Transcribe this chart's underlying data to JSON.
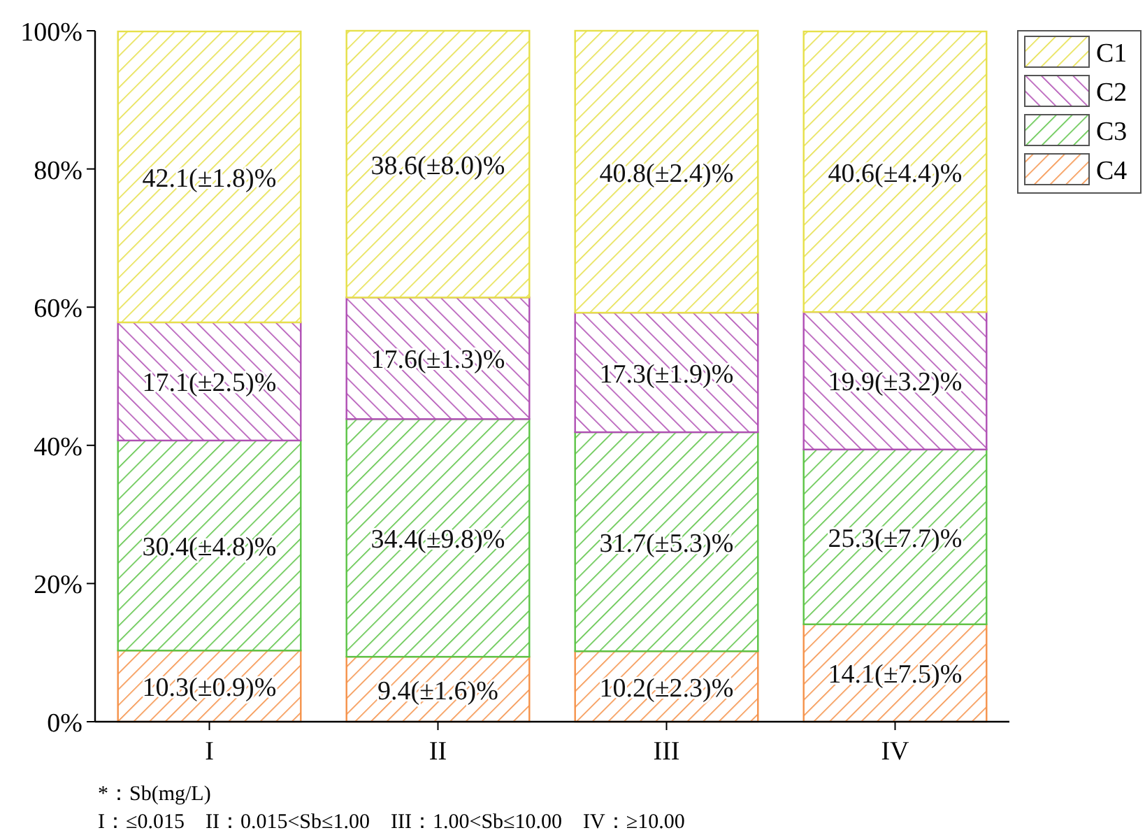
{
  "chart_data": {
    "type": "bar",
    "stacked": true,
    "categories": [
      "I",
      "II",
      "III",
      "IV"
    ],
    "series": [
      {
        "name": "C4",
        "color": "#f5924a",
        "values": [
          10.3,
          9.4,
          10.2,
          14.1
        ],
        "value_labels": [
          "10.3(±0.9)%",
          "9.4(±1.6)%",
          "10.2(±2.3)%",
          "14.1(±7.5)%"
        ]
      },
      {
        "name": "C3",
        "color": "#5cc446",
        "values": [
          30.4,
          34.4,
          31.7,
          25.3
        ],
        "value_labels": [
          "30.4(±4.8)%",
          "34.4(±9.8)%",
          "31.7(±5.3)%",
          "25.3(±7.7)%"
        ]
      },
      {
        "name": "C2",
        "color": "#b04fb4",
        "values": [
          17.1,
          17.6,
          17.3,
          19.9
        ],
        "value_labels": [
          "17.1(±2.5)%",
          "17.6(±1.3)%",
          "17.3(±1.9)%",
          "19.9(±3.2)%"
        ]
      },
      {
        "name": "C1",
        "color": "#e6e04a",
        "values": [
          42.1,
          38.6,
          40.8,
          40.6
        ],
        "value_labels": [
          "42.1(±1.8)%",
          "38.6(±8.0)%",
          "40.8(±2.4)%",
          "40.6(±4.4)%"
        ]
      }
    ],
    "ylim": [
      0,
      100
    ],
    "yticks": [
      {
        "value": 0,
        "label": "0%"
      },
      {
        "value": 20,
        "label": "20%"
      },
      {
        "value": 40,
        "label": "40%"
      },
      {
        "value": 60,
        "label": "60%"
      },
      {
        "value": 80,
        "label": "80%"
      },
      {
        "value": 100,
        "label": "100%"
      }
    ],
    "grid": false,
    "legend": "top right",
    "annotations": [
      "*：Sb(mg/L)",
      "I：≤0.015    II：0.015<Sb≤1.00    III：1.00<Sb≤10.00    IV：≥10.00"
    ]
  }
}
